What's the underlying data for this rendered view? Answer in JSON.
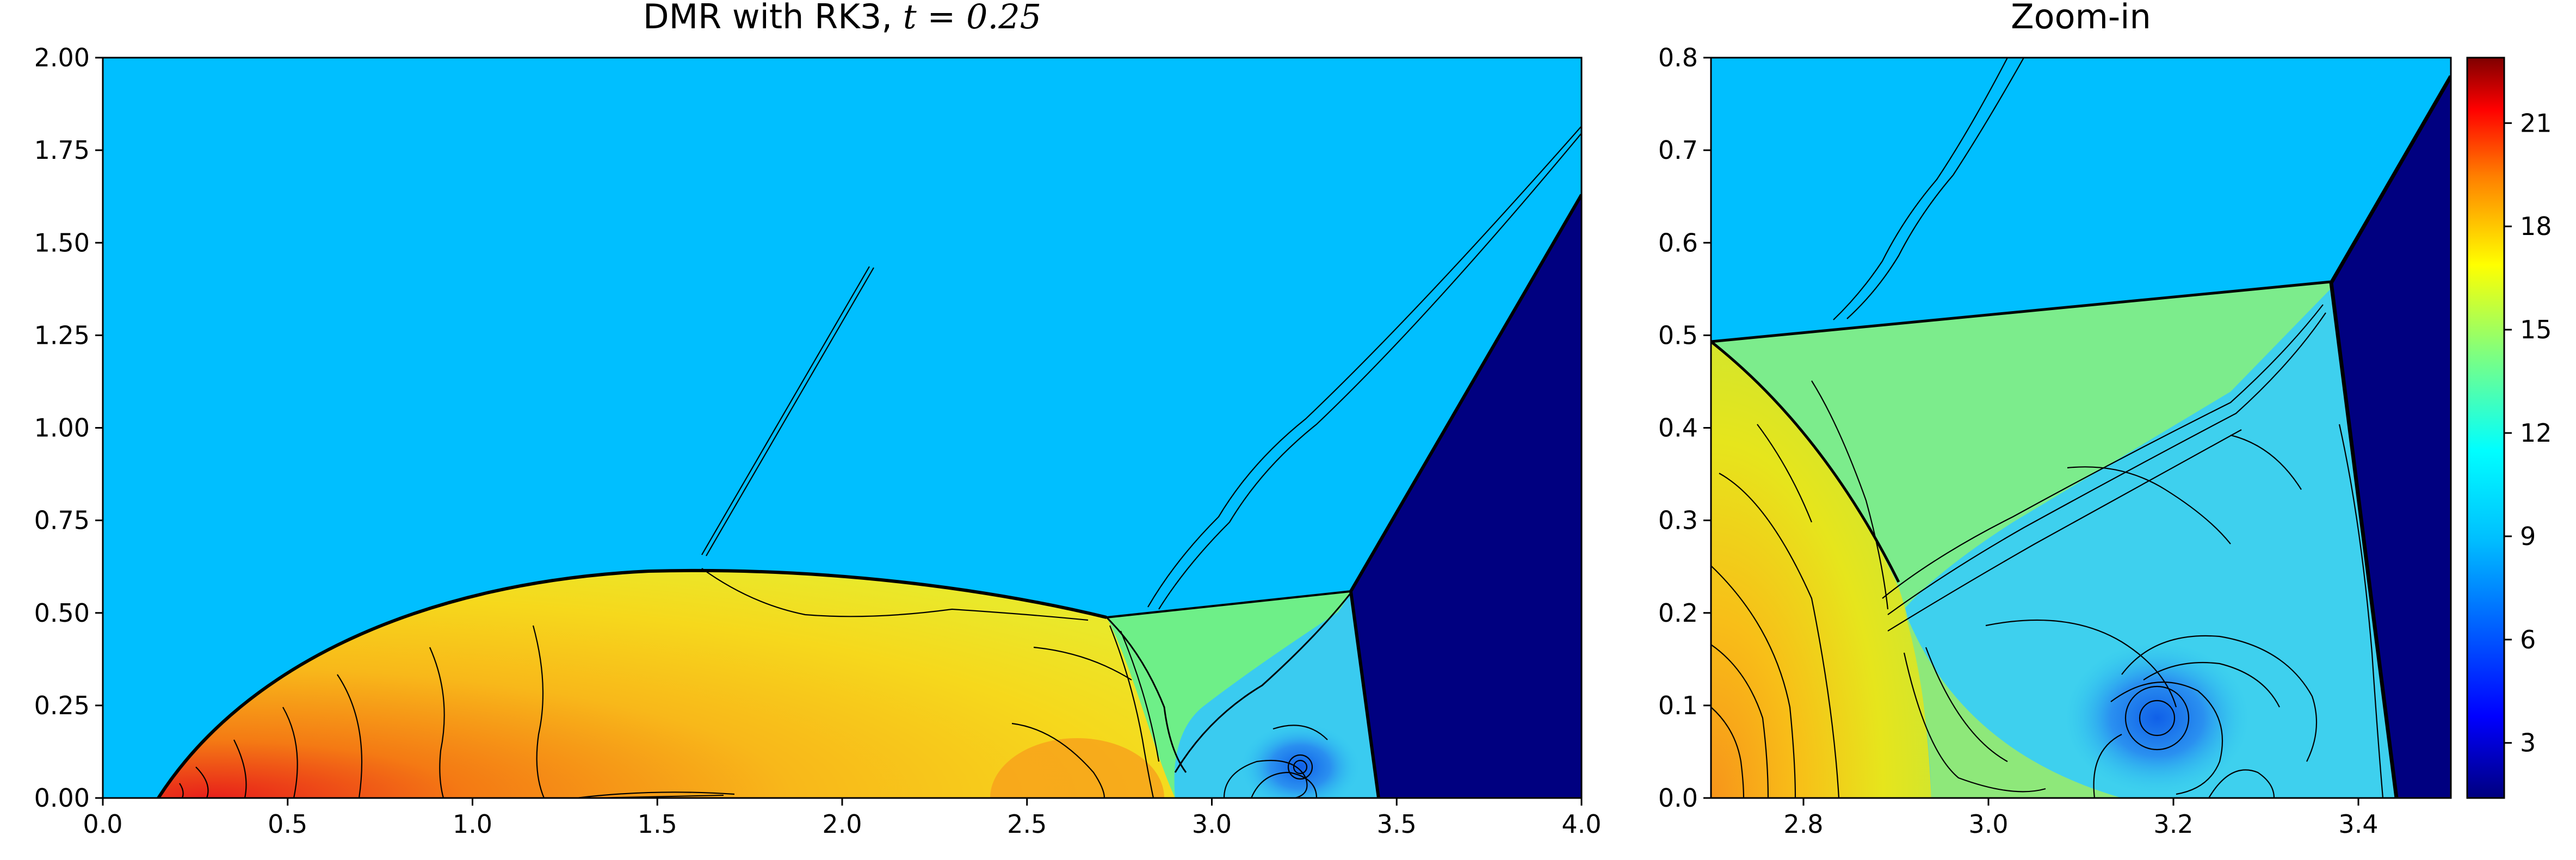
{
  "colors": {
    "ambient": "#00BFFF",
    "unshocked": "#000080",
    "post_shock_high": "#E8F020",
    "post_shock_peak": "#E02010",
    "contour": "#000000",
    "colormap": [
      "#00007F",
      "#0000FF",
      "#007FFF",
      "#00FFFF",
      "#7FFF7F",
      "#FFFF00",
      "#FF7F00",
      "#FF0000",
      "#7F0000"
    ]
  },
  "chart_data": [
    {
      "type": "heatmap",
      "title_prefix": "DMR with RK3, ",
      "title_math": "t = 0.25",
      "xlim": [
        0.0,
        4.0
      ],
      "ylim": [
        0.0,
        2.0
      ],
      "xticks": [
        "0.0",
        "0.5",
        "1.0",
        "1.5",
        "2.0",
        "2.5",
        "3.0",
        "3.5",
        "4.0"
      ],
      "yticks": [
        "0.00",
        "0.25",
        "0.50",
        "0.75",
        "1.00",
        "1.25",
        "1.50",
        "1.75",
        "2.00"
      ],
      "features": {
        "incident_shock": [
          [
            3.45,
            0.0
          ],
          [
            3.39,
            0.56
          ],
          [
            4.0,
            1.63
          ]
        ],
        "mach_stem_bow": [
          [
            0.15,
            0.0
          ],
          [
            0.5,
            0.42
          ],
          [
            1.8,
            0.64
          ],
          [
            2.72,
            0.49
          ]
        ],
        "triple_point": [
          3.38,
          0.56
        ],
        "vortex_center": [
          3.24,
          0.08
        ]
      }
    },
    {
      "type": "heatmap",
      "title": "Zoom-in",
      "xlim": [
        2.7,
        3.5
      ],
      "ylim": [
        0.0,
        0.8
      ],
      "xticks": [
        "2.8",
        "3.0",
        "3.2",
        "3.4"
      ],
      "yticks": [
        "0.0",
        "0.1",
        "0.2",
        "0.3",
        "0.4",
        "0.5",
        "0.6",
        "0.7",
        "0.8"
      ]
    },
    {
      "type": "colorbar",
      "vmin": 1.4,
      "vmax": 22.9,
      "ticks": [
        "3",
        "6",
        "9",
        "12",
        "15",
        "18",
        "21"
      ],
      "tick_values": [
        3,
        6,
        9,
        12,
        15,
        18,
        21
      ]
    }
  ]
}
